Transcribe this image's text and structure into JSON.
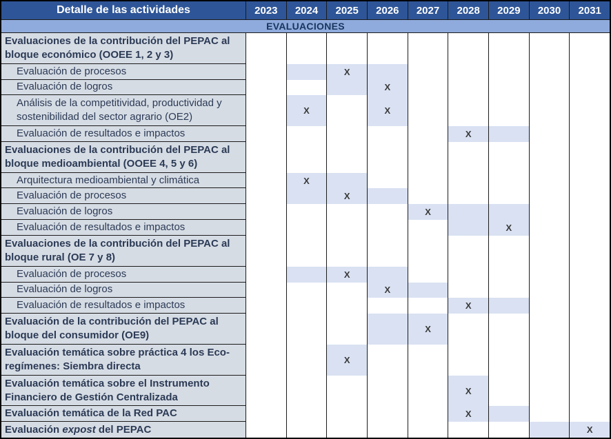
{
  "header": {
    "activities_label": "Detalle de las actividades",
    "years": [
      "2023",
      "2024",
      "2025",
      "2026",
      "2027",
      "2028",
      "2029",
      "2030",
      "2031"
    ]
  },
  "band": {
    "label": "EVALUACIONES"
  },
  "x_mark": "X",
  "colors": {
    "header_bg": "#2E5597",
    "header_text": "#FFFFFF",
    "band_bg": "#8FAADC",
    "band_text": "#17365D",
    "label_bg": "#D6DCE4",
    "label_text": "#2B3A55",
    "cell_shaded": "#D9E1F2",
    "grid": "#1A1A1A",
    "x_color": "#3A3A3A"
  },
  "rows": [
    {
      "label": "Evaluaciones de la contribución del PEPAC al bloque económico (OOEE 1, 2 y 3)",
      "style": "group",
      "lines": 2,
      "shaded": [],
      "x": []
    },
    {
      "label": "Evaluación de procesos",
      "style": "sub",
      "lines": 1,
      "shaded": [
        "2024",
        "2025",
        "2026"
      ],
      "x": [
        "2025"
      ]
    },
    {
      "label": "Evaluación de logros",
      "style": "sub",
      "lines": 1,
      "shaded": [
        "2025",
        "2026"
      ],
      "x": [
        "2026"
      ]
    },
    {
      "label": "Análisis de la competitividad, productividad y sostenibilidad del sector agrario (OE2)",
      "style": "sub",
      "lines": 2,
      "shaded": [
        "2024",
        "2026"
      ],
      "x": [
        "2024",
        "2026"
      ]
    },
    {
      "label": "Evaluación de resultados e impactos",
      "style": "sub",
      "lines": 1,
      "shaded": [
        "2028",
        "2029"
      ],
      "x": [
        "2028"
      ]
    },
    {
      "label": "Evaluaciones de la contribución del PEPAC al bloque medioambiental (OOEE 4, 5 y 6)",
      "style": "group",
      "lines": 2,
      "shaded": [],
      "x": []
    },
    {
      "label": "Arquitectura medioambiental y climática",
      "style": "sub",
      "lines": 1,
      "shaded": [
        "2024",
        "2025"
      ],
      "x": [
        "2024"
      ]
    },
    {
      "label": "Evaluación de procesos",
      "style": "sub",
      "lines": 1,
      "shaded": [
        "2024",
        "2025",
        "2026"
      ],
      "x": [
        "2025"
      ]
    },
    {
      "label": "Evaluación de logros",
      "style": "sub",
      "lines": 1,
      "shaded": [
        "2027",
        "2028",
        "2029"
      ],
      "x": [
        "2027"
      ]
    },
    {
      "label": "Evaluación de resultados e impactos",
      "style": "sub",
      "lines": 1,
      "shaded": [
        "2028",
        "2029"
      ],
      "x": [
        "2029"
      ]
    },
    {
      "label": "Evaluaciones de la contribución del PEPAC al bloque rural (OE 7 y 8)",
      "style": "group",
      "lines": 2,
      "shaded": [],
      "x": []
    },
    {
      "label": "Evaluación de procesos",
      "style": "sub",
      "lines": 1,
      "shaded": [
        "2024",
        "2025",
        "2026"
      ],
      "x": [
        "2025"
      ]
    },
    {
      "label": "Evaluación de logros",
      "style": "sub",
      "lines": 1,
      "shaded": [
        "2026",
        "2027"
      ],
      "x": [
        "2026"
      ]
    },
    {
      "label": "Evaluación de resultados e impactos",
      "style": "sub",
      "lines": 1,
      "shaded": [
        "2028",
        "2029"
      ],
      "x": [
        "2028"
      ]
    },
    {
      "label": "Evaluación de la contribución del PEPAC al bloque del consumidor (OE9)",
      "style": "group",
      "lines": 2,
      "shaded": [
        "2026",
        "2027"
      ],
      "x": [
        "2027"
      ]
    },
    {
      "label": "Evaluación temática sobre práctica 4 los Eco-regímenes: Siembra directa",
      "style": "group",
      "lines": 2,
      "shaded": [
        "2025"
      ],
      "x": [
        "2025"
      ]
    },
    {
      "label": "Evaluación temática sobre el Instrumento Financiero de Gestión Centralizada",
      "style": "group",
      "lines": 2,
      "shaded": [
        "2028"
      ],
      "x": [
        "2028"
      ]
    },
    {
      "label": "Evaluación temática de la Red PAC",
      "style": "group",
      "lines": 1,
      "shaded": [
        "2028",
        "2029"
      ],
      "x": [
        "2028"
      ]
    },
    {
      "label": "Evaluación expost del PEPAC",
      "style": "group",
      "lines": 1,
      "em": "expost",
      "shaded": [
        "2030",
        "2031"
      ],
      "x": [
        "2031"
      ]
    }
  ]
}
